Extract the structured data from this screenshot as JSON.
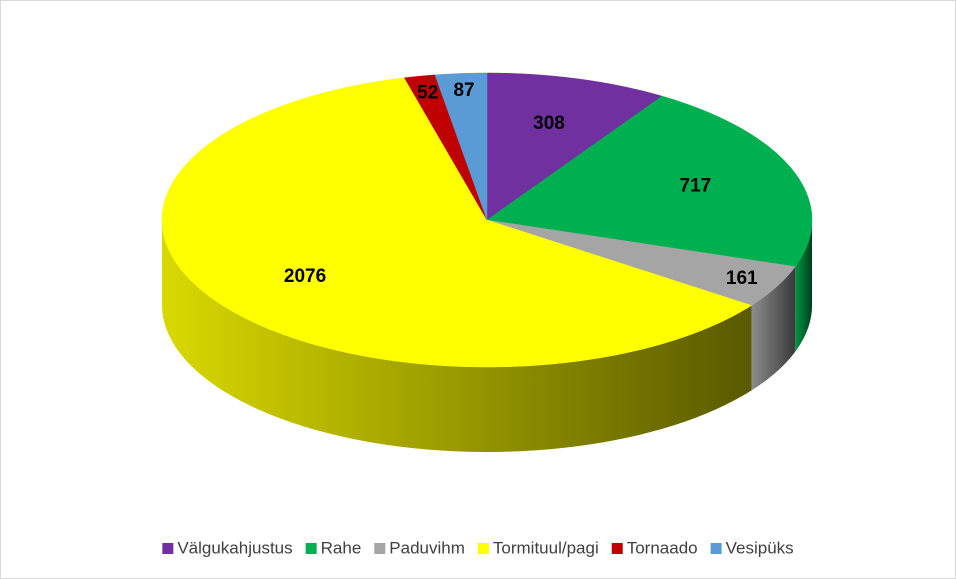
{
  "chart_data": {
    "type": "pie3d",
    "categories": [
      "Välgukahjustus",
      "Rahe",
      "Paduvihm",
      "Tormituul/pagi",
      "Tornaado",
      "Vesipüks"
    ],
    "values": [
      308,
      717,
      161,
      2076,
      52,
      87
    ],
    "colors": [
      "#7030a0",
      "#00b050",
      "#a5a5a5",
      "#ffff00",
      "#c00000",
      "#5b9bd5"
    ],
    "legend": "bottom"
  }
}
